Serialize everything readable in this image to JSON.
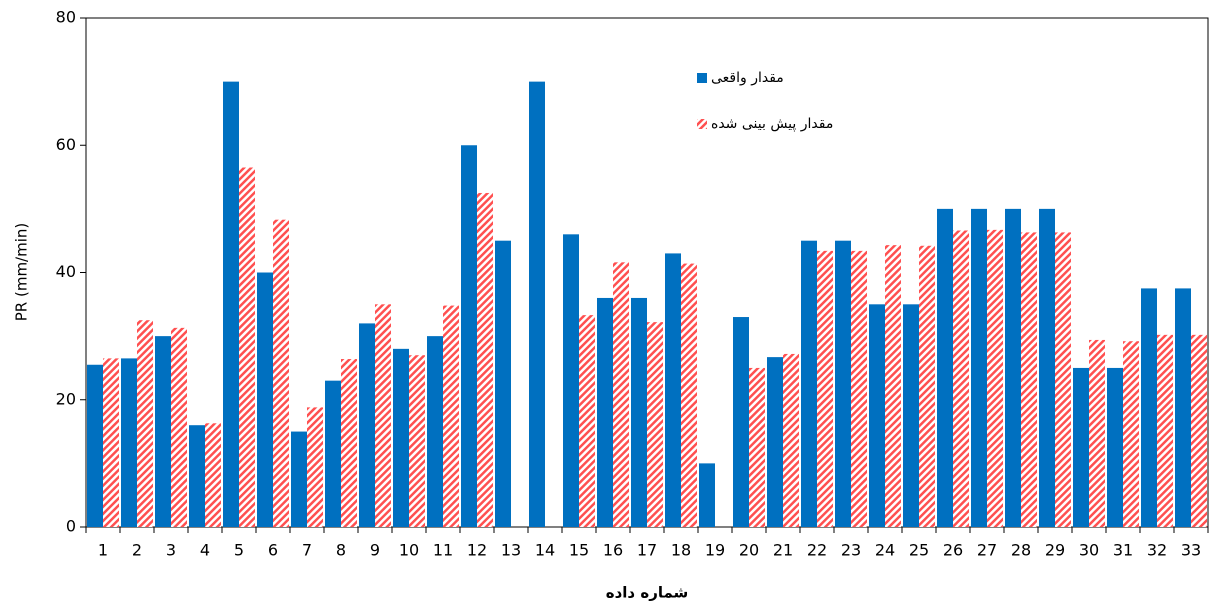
{
  "chart_data": {
    "type": "bar",
    "x_label": "شماره داده",
    "y_label": "PR (mm/min)",
    "categories": [
      "1",
      "2",
      "3",
      "4",
      "5",
      "6",
      "7",
      "8",
      "9",
      "10",
      "11",
      "12",
      "13",
      "14",
      "15",
      "16",
      "17",
      "18",
      "19",
      "20",
      "21",
      "22",
      "23",
      "24",
      "25",
      "26",
      "27",
      "28",
      "29",
      "30",
      "31",
      "32",
      "33"
    ],
    "series": [
      {
        "name": "مقدار واقعی",
        "color": "#0070c0",
        "hatch": false,
        "values": [
          25.5,
          26.5,
          30,
          16,
          70,
          40,
          15,
          23,
          32,
          28,
          30,
          60,
          45,
          70,
          46,
          36,
          36,
          43,
          10,
          33,
          26.7,
          45,
          45,
          35,
          35,
          50,
          50,
          50,
          50,
          25,
          25,
          37.5,
          37.5
        ]
      },
      {
        "name": "مقدار پیش بینی شده",
        "color": "#ff5050",
        "hatch": true,
        "values": [
          26.5,
          32.5,
          31.3,
          16.3,
          56.5,
          48.3,
          18.8,
          26.4,
          35,
          27,
          34.8,
          52.5,
          null,
          null,
          33.3,
          41.6,
          32.2,
          41.4,
          null,
          25,
          27.2,
          43.4,
          43.4,
          44.3,
          44.2,
          46.6,
          46.7,
          46.3,
          46.3,
          29.4,
          29.2,
          30.2,
          30.2
        ]
      }
    ],
    "ylim": [
      0,
      80
    ],
    "yticks": [
      0,
      20,
      40,
      60,
      80
    ],
    "grid": false,
    "legend": "upper center"
  }
}
